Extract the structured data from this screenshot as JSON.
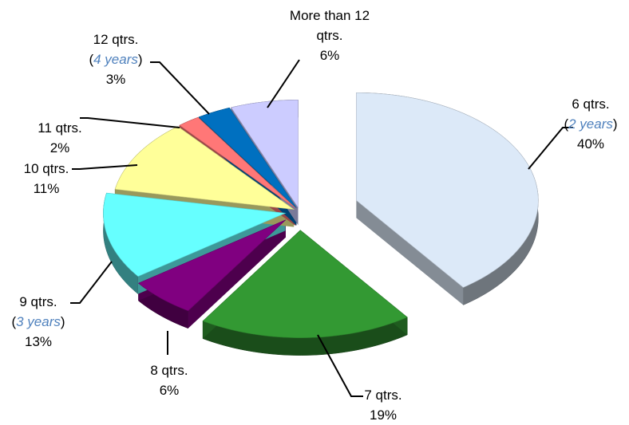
{
  "chart_data": {
    "type": "pie",
    "categories": [
      "6 qtrs.",
      "7 qtrs.",
      "8 qtrs.",
      "9 qtrs.",
      "10 qtrs.",
      "11 qtrs.",
      "12 qtrs.",
      "More than 12 qtrs."
    ],
    "sublabels": [
      "(2 years)",
      null,
      null,
      "(3 years)",
      null,
      null,
      "(4 years)",
      null
    ],
    "values": [
      40,
      19,
      6,
      13,
      11,
      2,
      3,
      6
    ],
    "value_labels": [
      "40%",
      "19%",
      "6%",
      "13%",
      "11%",
      "2%",
      "3%",
      "6%"
    ],
    "colors": [
      "#dce9f8",
      "#339933",
      "#800080",
      "#66ffff",
      "#ffff99",
      "#ff7777",
      "#0070c0",
      "#ccccff"
    ]
  }
}
